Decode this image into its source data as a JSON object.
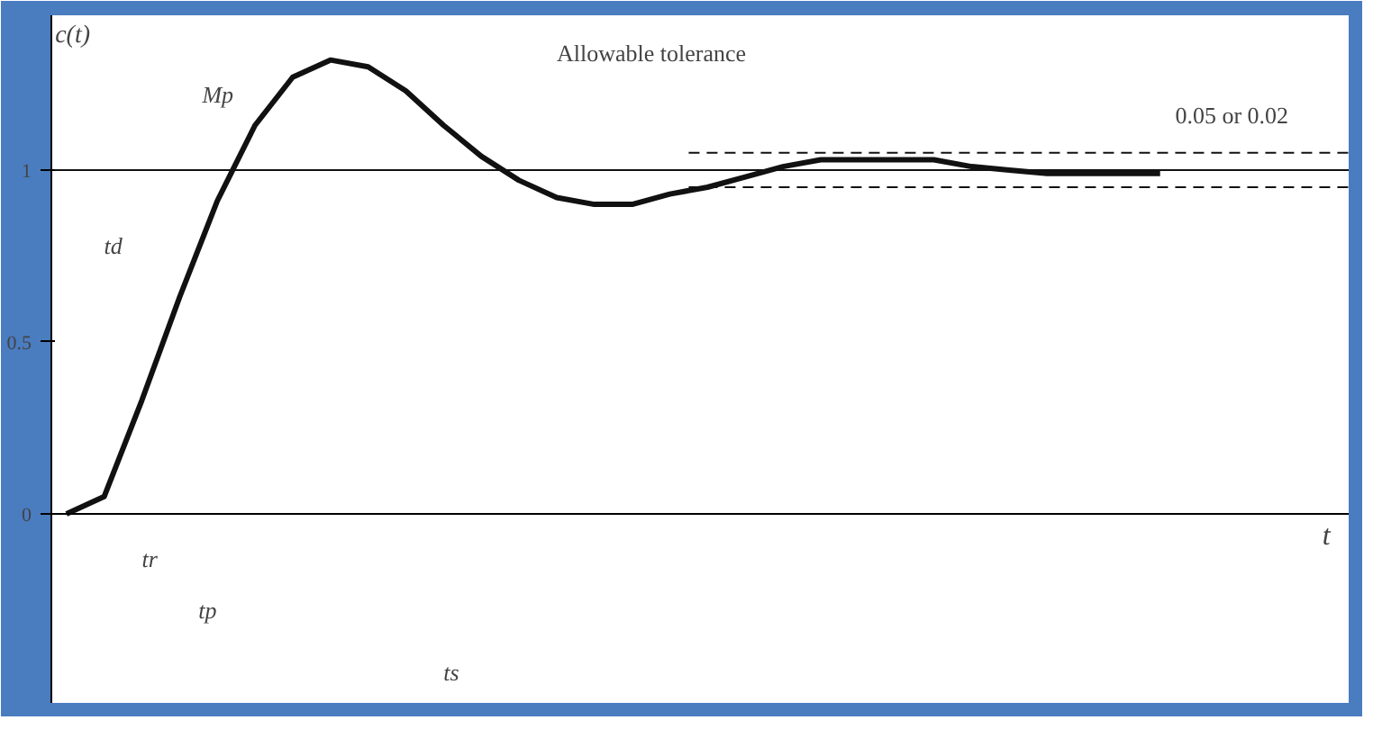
{
  "chart_data": {
    "type": "line",
    "xlabel": "t",
    "ylabel": "c(t)",
    "categories": [
      null,
      null,
      null,
      null,
      null,
      null,
      null,
      null,
      null,
      null,
      null,
      null,
      null,
      null,
      null,
      null,
      null,
      null,
      null,
      null,
      null,
      null,
      null,
      null,
      null,
      null,
      null,
      null,
      null,
      null
    ],
    "series": [
      {
        "color": "#111111",
        "values": [
          0,
          0.05,
          0.33,
          0.63,
          0.91,
          1.13,
          1.27,
          1.32,
          1.3,
          1.23,
          1.13,
          1.04,
          0.97,
          0.92,
          0.9,
          0.9,
          0.93,
          0.95,
          0.98,
          1.01,
          1.03,
          1.03,
          1.03,
          1.03,
          1.01,
          1.0,
          0.99,
          0.99,
          0.99,
          0.99
        ]
      }
    ],
    "ylim": [
      -0.55,
      1.45
    ],
    "yticks": [
      0,
      0.5,
      1
    ],
    "ref_lines": [
      {
        "axis": "y",
        "value": 1,
        "label": null,
        "color": "#111111",
        "line_style": "solid"
      },
      {
        "axis": "y",
        "value": 1.05,
        "label": null,
        "color": "#111111",
        "line_style": "dashed"
      },
      {
        "axis": "y",
        "value": 0.95,
        "label": null,
        "color": "#111111",
        "line_style": "dashed"
      }
    ],
    "annotations": [
      "Mp",
      "td",
      "tr",
      "tp",
      "ts",
      "Allowable tolerance",
      "0.05 or 0.02"
    ],
    "grid": false,
    "marker": "none",
    "line_style": "solid",
    "tick_labels": "y"
  }
}
